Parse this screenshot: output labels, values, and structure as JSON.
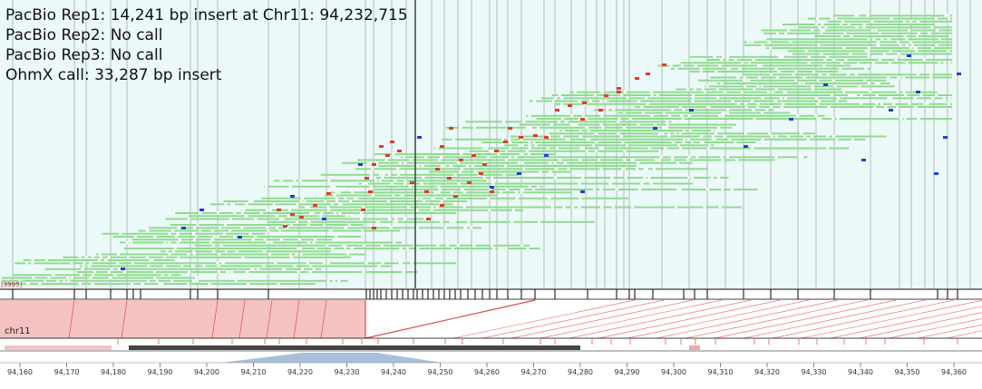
{
  "annotations": [
    "PacBio Rep1: 14,241 bp insert at Chr11: 94,232,715",
    "PacBio Rep2: No call",
    "PacBio Rep3: No call",
    "OhmX call: 33,287 bp insert"
  ],
  "position_label": "[3995]",
  "chromosome_label": "chr11",
  "axis_ticks": [
    "94,160",
    "94,170",
    "94,180",
    "94,190",
    "94,200",
    "94,210",
    "94,220",
    "94,230",
    "94,240",
    "94,250",
    "94,260",
    "94,270",
    "94,280",
    "94,290",
    "94,300",
    "94,310",
    "94,320",
    "94,330",
    "94,340",
    "94,350",
    "94,360"
  ],
  "colors": {
    "read": "#8fdc8f",
    "mismatch": "#e23a2a",
    "insertion": "#1f3fd0",
    "alignment_block": "#f5c2c2",
    "alignment_line": "#e04a4a",
    "background": "#ecf9f9"
  }
}
